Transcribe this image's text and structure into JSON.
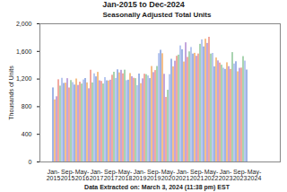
{
  "chart_data": {
    "type": "bar",
    "title": "Jan-2015 to Dec-2024",
    "subtitle": "Seasonally Adjusted Total Units",
    "caption": "Data Extracted on: March 3, 2024 (11:38 pm) EST",
    "y_label": "Thousands of Units",
    "categories": [
      "Jan-2015",
      null,
      null,
      null,
      null,
      null,
      null,
      null,
      "Sep-2015",
      null,
      null,
      null,
      null,
      null,
      null,
      null,
      "May-2016",
      null,
      null,
      null,
      null,
      null,
      null,
      null,
      "Jan-2017",
      null,
      null,
      null,
      null,
      null,
      null,
      null,
      "Sep-2017",
      null,
      null,
      null,
      null,
      null,
      null,
      null,
      "May-2018",
      null,
      null,
      null,
      null,
      null,
      null,
      null,
      "Jan-2019",
      null,
      null,
      null,
      null,
      null,
      null,
      null,
      "Sep-2019",
      null,
      null,
      null,
      null,
      null,
      null,
      null,
      "May-2020",
      null,
      null,
      null,
      null,
      null,
      null,
      null,
      "Jan-2021",
      null,
      null,
      null,
      null,
      null,
      null,
      null,
      "Sep-2021",
      null,
      null,
      null,
      null,
      null,
      null,
      null,
      "May-2022",
      null,
      null,
      null,
      null,
      null,
      null,
      null,
      "Jan-2023",
      null,
      null,
      null,
      null,
      null,
      null,
      null,
      "Sep-2023",
      null,
      null,
      null,
      null,
      null,
      null,
      null,
      "May-2024",
      null,
      null,
      null,
      null,
      null,
      null,
      null
    ],
    "values": [
      1072,
      899,
      944,
      1190,
      1098,
      1211,
      1137,
      1141,
      1206,
      1071,
      1179,
      1149,
      1114,
      1201,
      1108,
      1155,
      1128,
      1187,
      1208,
      1145,
      1060,
      1328,
      1145,
      1276,
      1232,
      1297,
      1175,
      1166,
      1129,
      1221,
      1175,
      1173,
      1184,
      1255,
      1299,
      1209,
      1334,
      1290,
      1327,
      1276,
      1329,
      1177,
      1184,
      1280,
      1234,
      1212,
      1206,
      1105,
      1273,
      1134,
      1203,
      1270,
      1264,
      1245,
      1207,
      1382,
      1294,
      1323,
      1382,
      1568,
      1617,
      1567,
      1269,
      934,
      1038,
      1265,
      1487,
      1376,
      1459,
      1530,
      1547,
      1680,
      1625,
      1447,
      1725,
      1514,
      1594,
      1657,
      1562,
      1573,
      1530,
      1563,
      1703,
      1768,
      1666,
      1777,
      1716,
      1805,
      1562,
      1571,
      1377,
      1505,
      1463,
      1432,
      1401,
      1357,
      1340,
      1436,
      1380,
      1340,
      1583,
      1418,
      1451,
      1305,
      1356,
      1359,
      1525,
      1460,
      1331,
      null,
      null,
      null,
      null,
      null,
      null,
      null,
      null,
      null,
      null,
      null
    ],
    "colors": [
      "#9fb4e6",
      "#f5c08a",
      "#c3a6dc",
      "#f2a9a0",
      "#a9d4b0",
      "#b8c8f0",
      "#9fb4e6",
      "#f5c08a",
      "#c3a6dc",
      "#f2a9a0",
      "#a9d4b0",
      "#b8c8f0",
      "#9fb4e6",
      "#f5c08a",
      "#c3a6dc",
      "#f2a9a0",
      "#a9d4b0",
      "#b8c8f0",
      "#9fb4e6",
      "#f5c08a",
      "#c3a6dc",
      "#f2a9a0",
      "#a9d4b0",
      "#b8c8f0",
      "#9fb4e6",
      "#f5c08a",
      "#c3a6dc",
      "#f2a9a0",
      "#a9d4b0",
      "#b8c8f0",
      "#9fb4e6",
      "#f5c08a",
      "#c3a6dc",
      "#f2a9a0",
      "#a9d4b0",
      "#b8c8f0",
      "#9fb4e6",
      "#f5c08a",
      "#c3a6dc",
      "#f2a9a0",
      "#a9d4b0",
      "#b8c8f0",
      "#9fb4e6",
      "#f5c08a",
      "#c3a6dc",
      "#f2a9a0",
      "#a9d4b0",
      "#b8c8f0",
      "#9fb4e6",
      "#f5c08a",
      "#c3a6dc",
      "#f2a9a0",
      "#a9d4b0",
      "#b8c8f0",
      "#9fb4e6",
      "#f5c08a",
      "#c3a6dc",
      "#f2a9a0",
      "#a9d4b0",
      "#b8c8f0",
      "#9fb4e6",
      "#f5c08a",
      "#c3a6dc",
      "#f2a9a0",
      "#a9d4b0",
      "#b8c8f0",
      "#9fb4e6",
      "#f5c08a",
      "#c3a6dc",
      "#f2a9a0",
      "#a9d4b0",
      "#b8c8f0",
      "#9fb4e6",
      "#f5c08a",
      "#c3a6dc",
      "#f2a9a0",
      "#a9d4b0",
      "#b8c8f0",
      "#9fb4e6",
      "#f5c08a",
      "#c3a6dc",
      "#f2a9a0",
      "#a9d4b0",
      "#b8c8f0",
      "#9fb4e6",
      "#f5c08a",
      "#c3a6dc",
      "#f2a9a0",
      "#a9d4b0",
      "#b8c8f0",
      "#9fb4e6",
      "#f5c08a",
      "#c3a6dc",
      "#f2a9a0",
      "#a9d4b0",
      "#b8c8f0",
      "#9fb4e6",
      "#f5c08a",
      "#c3a6dc",
      "#f2a9a0",
      "#a9d4b0",
      "#b8c8f0",
      "#9fb4e6",
      "#f5c08a",
      "#c3a6dc",
      "#f2a9a0",
      "#a9d4b0",
      "#b8c8f0",
      "#9fb4e6",
      "#f5c08a",
      "#c3a6dc",
      "#f2a9a0",
      "#a9d4b0",
      "#b8c8f0",
      "#9fb4e6",
      "#f5c08a",
      "#c3a6dc",
      "#f2a9a0",
      "#a9d4b0",
      "#b8c8f0"
    ],
    "ylim": [
      0,
      2000
    ],
    "yticks": [
      0,
      400,
      800,
      {
        "value": 1200,
        "label": "1,200"
      },
      {
        "value": 1600,
        "label": "1,600"
      },
      {
        "value": 2000,
        "label": "2,000"
      }
    ],
    "grid": false
  }
}
